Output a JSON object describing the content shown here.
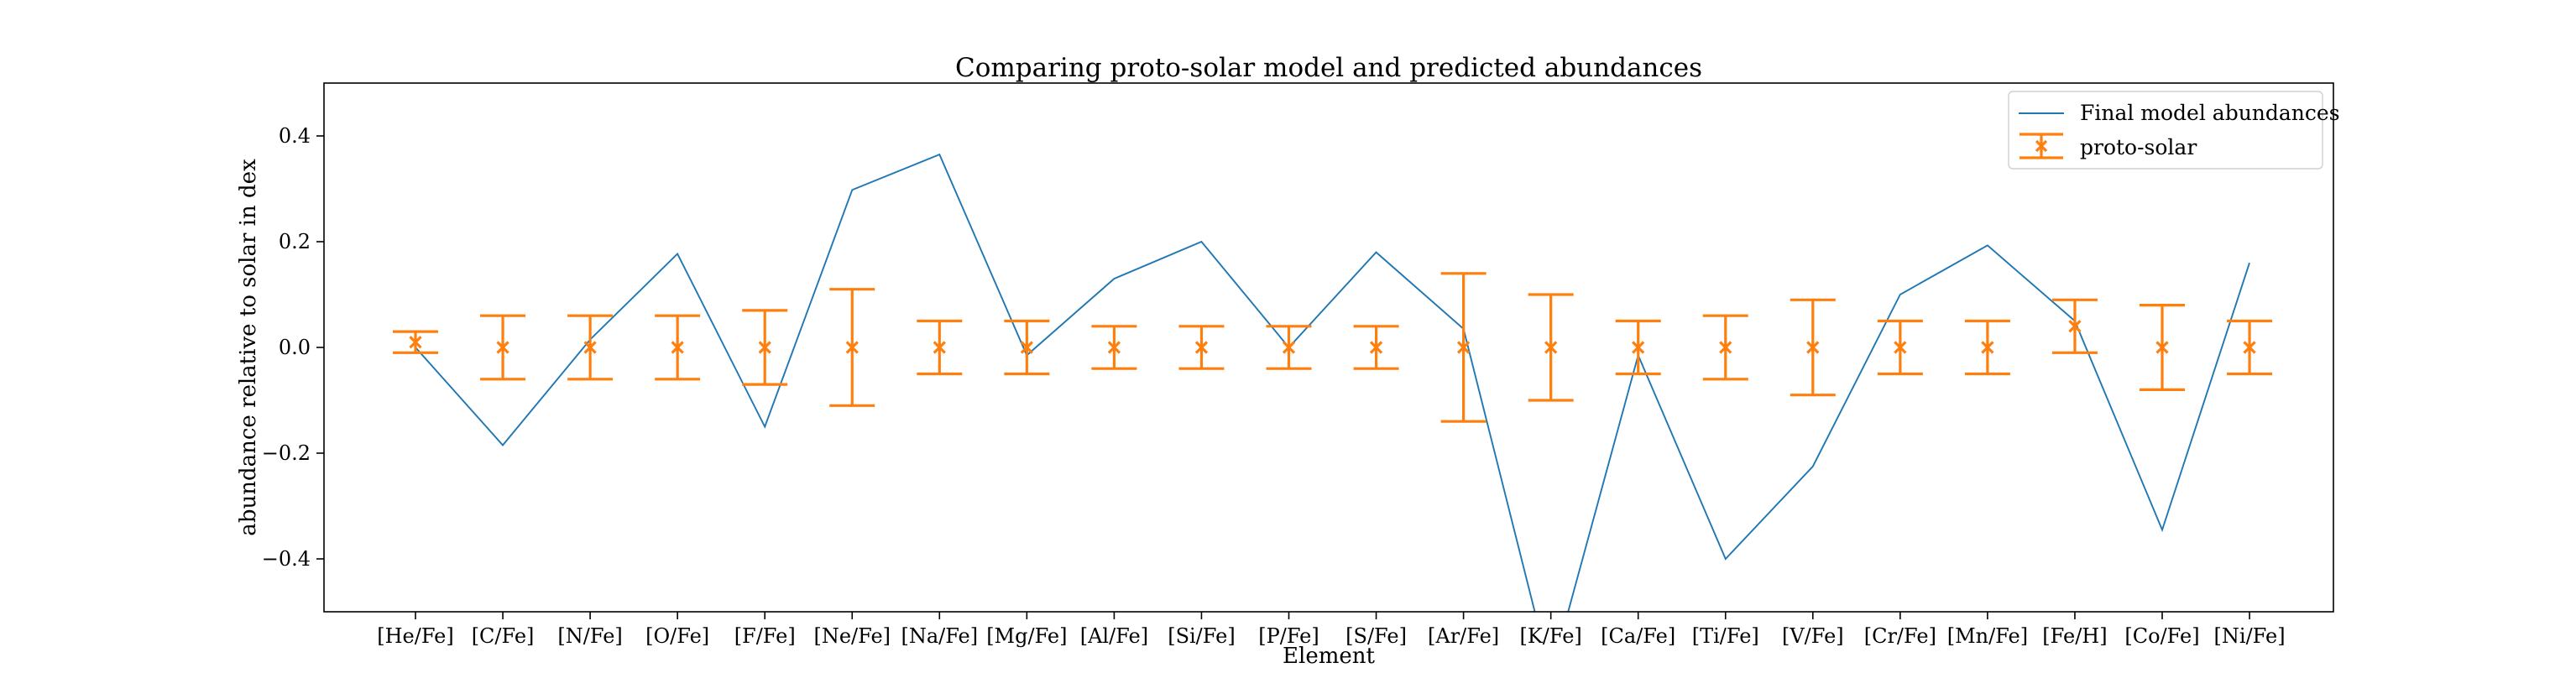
{
  "chart_data": {
    "type": "line",
    "title": "Comparing proto-solar model and predicted abundances",
    "xlabel": "Element",
    "ylabel": "abundance relative to solar in dex",
    "ylim": [
      -0.5,
      0.5
    ],
    "yticks": [
      -0.4,
      -0.2,
      0.0,
      0.2,
      0.4
    ],
    "ytick_labels": [
      "−0.4",
      "−0.2",
      "0.0",
      "0.2",
      "0.4"
    ],
    "categories": [
      "[He/Fe]",
      "[C/Fe]",
      "[N/Fe]",
      "[O/Fe]",
      "[F/Fe]",
      "[Ne/Fe]",
      "[Na/Fe]",
      "[Mg/Fe]",
      "[Al/Fe]",
      "[Si/Fe]",
      "[P/Fe]",
      "[S/Fe]",
      "[Ar/Fe]",
      "[K/Fe]",
      "[Ca/Fe]",
      "[Ti/Fe]",
      "[V/Fe]",
      "[Cr/Fe]",
      "[Mn/Fe]",
      "[Fe/H]",
      "[Co/Fe]",
      "[Ni/Fe]"
    ],
    "grid": false,
    "legend_position": "top-right",
    "series": [
      {
        "name": "Final model abundances",
        "kind": "line",
        "color": "#1f77b4",
        "values": [
          0.0,
          -0.185,
          0.015,
          0.177,
          -0.15,
          0.298,
          0.365,
          -0.015,
          0.13,
          0.2,
          0.0,
          0.18,
          0.035,
          -0.62,
          -0.015,
          -0.4,
          -0.225,
          0.1,
          0.193,
          0.05,
          -0.345,
          0.16
        ]
      },
      {
        "name": "proto-solar",
        "kind": "errorbar",
        "color": "#ff7f0e",
        "values": [
          0.01,
          0.0,
          0.0,
          0.0,
          0.0,
          0.0,
          0.0,
          0.0,
          0.0,
          0.0,
          0.0,
          0.0,
          0.0,
          0.0,
          0.0,
          0.0,
          0.0,
          0.0,
          0.0,
          0.04,
          0.0,
          0.0
        ],
        "errors": [
          0.02,
          0.06,
          0.06,
          0.06,
          0.07,
          0.11,
          0.05,
          0.05,
          0.04,
          0.04,
          0.04,
          0.04,
          0.14,
          0.1,
          0.05,
          0.06,
          0.09,
          0.05,
          0.05,
          0.05,
          0.08,
          0.05
        ]
      }
    ]
  }
}
